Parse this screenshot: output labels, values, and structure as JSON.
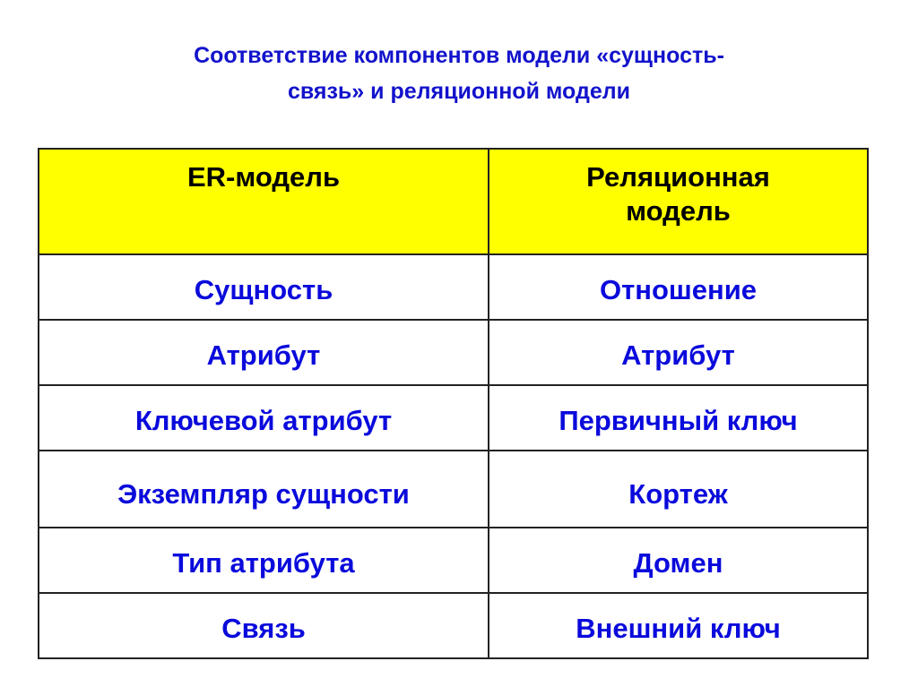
{
  "title": "Соответствие компонентов модели «сущность-связь» и реляционной модели",
  "title_lines": [
    "Соответствие компонентов модели «сущность-",
    "связь» и реляционной модели"
  ],
  "colors": {
    "title": "#1212cc",
    "header_bg": "#ffff00",
    "cell_text": "#0a0adc"
  },
  "table": {
    "headers": [
      "ER-модель",
      "Реляционная модель"
    ],
    "rows": [
      [
        "Сущность",
        "Отношение"
      ],
      [
        "Атрибут",
        "Атрибут"
      ],
      [
        "Ключевой атрибут",
        "Первичный ключ"
      ],
      [
        "Экземпляр сущности",
        "Кортеж"
      ],
      [
        "Тип атрибута",
        "Домен"
      ],
      [
        "Связь",
        "Внешний ключ"
      ]
    ]
  }
}
